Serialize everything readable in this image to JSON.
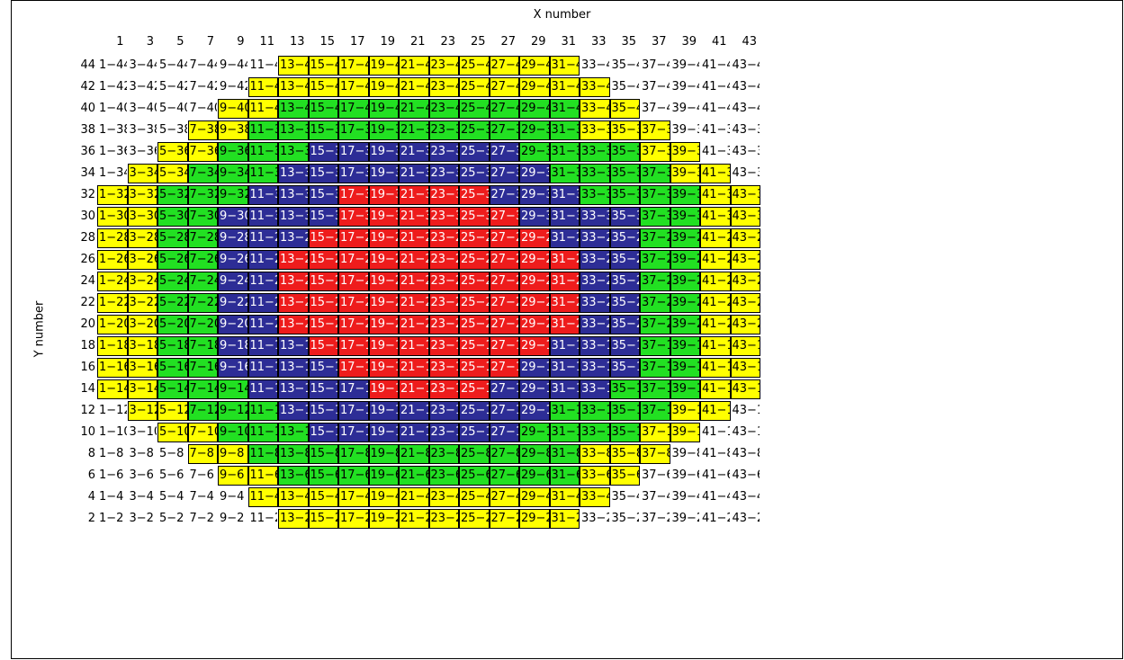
{
  "x_axis_label": "X number",
  "y_axis_label": "Y number",
  "colors": {
    "Y": "#ffff00",
    "G": "#22e022",
    "B": "#2d2d96",
    "R": "#ee1c1c",
    "W": "#ffffff"
  },
  "columns": [
    1,
    3,
    5,
    7,
    9,
    11,
    13,
    15,
    17,
    19,
    21,
    23,
    25,
    27,
    29,
    31,
    33,
    35,
    37,
    39,
    41,
    43
  ],
  "rows": [
    {
      "y": 44,
      "colors": "WWWWWWYYYYYYYYYYWWWWWW"
    },
    {
      "y": 42,
      "colors": "WWWWWYYYYYYYYYYYYWWWWW"
    },
    {
      "y": 40,
      "colors": "WWWWYYGGGGGGGGGGYYWWWW"
    },
    {
      "y": 38,
      "colors": "WWWYYGGGGGGGGGGGYYYWWW"
    },
    {
      "y": 36,
      "colors": "WWYYGGGBBBBBBBGGGGYYWW"
    },
    {
      "y": 34,
      "colors": "WYYGGGBBBBBBBBBGGGGYYW"
    },
    {
      "y": 32,
      "colors": "YYGGGBBBRRRRRBBBGGGGYY"
    },
    {
      "y": 30,
      "colors": "YYGGBBBBRRRRRRBBBBGGYY"
    },
    {
      "y": 28,
      "colors": "YYGGBBBRRRRRRRRBBBGGYY"
    },
    {
      "y": 26,
      "colors": "YYGGBBRRRRRRRRRRBBGGYY"
    },
    {
      "y": 24,
      "colors": "YYGGBBRRRRRRRRRRBBGGYY"
    },
    {
      "y": 22,
      "colors": "YYGGBBRRRRRRRRRRBBGGYY"
    },
    {
      "y": 20,
      "colors": "YYGGBBRRRRRRRRRRBBGGYY"
    },
    {
      "y": 18,
      "colors": "YYGGBBBRRRRRRRRBBBGGYY"
    },
    {
      "y": 16,
      "colors": "YYGGBBBBRRRRRRBBBBGGYY"
    },
    {
      "y": 14,
      "colors": "YYGGGBBBBRRRRBBBBGGGYY"
    },
    {
      "y": 12,
      "colors": "WYYGGGBBBBBBBBBGGGGYYW"
    },
    {
      "y": 10,
      "colors": "WWYYGGGBBBBBBBGGGGYYWW"
    },
    {
      "y": 8,
      "colors": "WWWYYGGGGGGGGGGGYYYWWW"
    },
    {
      "y": 6,
      "colors": "WWWWYYGGGGGGGGGGYYWWWW"
    },
    {
      "y": 4,
      "colors": "WWWWWYYYYYYYYYYYYWWWWW"
    },
    {
      "y": 2,
      "colors": "WWWWWWYYYYYYYYYYWWWWWW"
    }
  ]
}
